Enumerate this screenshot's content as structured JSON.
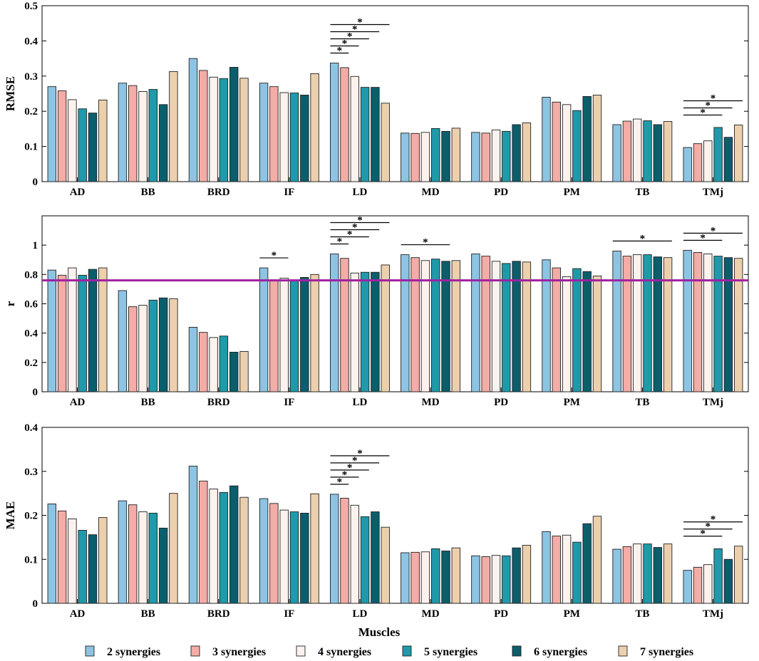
{
  "figure": {
    "xlabel": "Muscles",
    "colors": [
      "#8dc4e3",
      "#f4aca6",
      "#fbf2ee",
      "#1f9aaa",
      "#0b5e6c",
      "#ecd0ae"
    ],
    "legend": [
      "2 synergies",
      "3 synergies",
      "4 synergies",
      "5 synergies",
      "6 synergies",
      "7 synergies"
    ]
  },
  "chart_data": [
    {
      "type": "bar",
      "ylabel": "RMSE",
      "ylim": [
        0,
        0.5
      ],
      "yticks": [
        0,
        0.1,
        0.2,
        0.3,
        0.4,
        0.5
      ],
      "ytick_labels": [
        "0",
        "0.1",
        "0.2",
        "0.3",
        "0.4",
        "0.5"
      ],
      "categories": [
        "AD",
        "BB",
        "BRD",
        "IF",
        "LD",
        "MD",
        "PD",
        "PM",
        "TB",
        "TMj"
      ],
      "series": [
        {
          "name": "2 synergies",
          "values": [
            0.27,
            0.28,
            0.35,
            0.28,
            0.337,
            0.138,
            0.14,
            0.24,
            0.162,
            0.097
          ]
        },
        {
          "name": "3 synergies",
          "values": [
            0.258,
            0.273,
            0.316,
            0.27,
            0.324,
            0.137,
            0.138,
            0.226,
            0.172,
            0.108
          ]
        },
        {
          "name": "4 synergies",
          "values": [
            0.233,
            0.256,
            0.297,
            0.253,
            0.299,
            0.14,
            0.147,
            0.219,
            0.178,
            0.116
          ]
        },
        {
          "name": "5 synergies",
          "values": [
            0.207,
            0.262,
            0.293,
            0.252,
            0.268,
            0.151,
            0.143,
            0.202,
            0.173,
            0.154
          ]
        },
        {
          "name": "6 synergies",
          "values": [
            0.195,
            0.219,
            0.325,
            0.246,
            0.268,
            0.143,
            0.162,
            0.242,
            0.162,
            0.126
          ]
        },
        {
          "name": "7 synergies",
          "values": [
            0.232,
            0.313,
            0.294,
            0.307,
            0.223,
            0.152,
            0.167,
            0.246,
            0.171,
            0.161
          ]
        }
      ],
      "significance": [
        {
          "group": 4,
          "from": 0,
          "to": 1,
          "label": "*"
        },
        {
          "group": 4,
          "from": 0,
          "to": 2,
          "label": "*"
        },
        {
          "group": 4,
          "from": 0,
          "to": 3,
          "label": "*"
        },
        {
          "group": 4,
          "from": 0,
          "to": 4,
          "label": "*"
        },
        {
          "group": 4,
          "from": 0,
          "to": 5,
          "label": "*"
        },
        {
          "group": 9,
          "from": 0,
          "to": 3,
          "label": "*"
        },
        {
          "group": 9,
          "from": 0,
          "to": 4,
          "label": "*"
        },
        {
          "group": 9,
          "from": 0,
          "to": 5,
          "label": "*"
        }
      ]
    },
    {
      "type": "bar",
      "ylabel": "r",
      "ylim": [
        0,
        1.2
      ],
      "yticks": [
        0,
        0.2,
        0.4,
        0.6,
        0.8,
        1
      ],
      "ytick_labels": [
        "0",
        "0.2",
        "0.4",
        "0.6",
        "0.8",
        "1"
      ],
      "reference_line": {
        "value": 0.76,
        "color": "#a020a0"
      },
      "categories": [
        "AD",
        "BB",
        "BRD",
        "IF",
        "LD",
        "MD",
        "PD",
        "PM",
        "TB",
        "TMj"
      ],
      "series": [
        {
          "name": "2 synergies",
          "values": [
            0.83,
            0.69,
            0.44,
            0.845,
            0.94,
            0.935,
            0.94,
            0.9,
            0.96,
            0.965
          ]
        },
        {
          "name": "3 synergies",
          "values": [
            0.795,
            0.58,
            0.405,
            0.76,
            0.91,
            0.915,
            0.925,
            0.845,
            0.925,
            0.95
          ]
        },
        {
          "name": "4 synergies",
          "values": [
            0.845,
            0.59,
            0.37,
            0.775,
            0.81,
            0.895,
            0.89,
            0.785,
            0.935,
            0.94
          ]
        },
        {
          "name": "5 synergies",
          "values": [
            0.795,
            0.625,
            0.38,
            0.76,
            0.815,
            0.905,
            0.875,
            0.84,
            0.935,
            0.925
          ]
        },
        {
          "name": "6 synergies",
          "values": [
            0.835,
            0.64,
            0.27,
            0.78,
            0.815,
            0.89,
            0.89,
            0.82,
            0.92,
            0.915
          ]
        },
        {
          "name": "7 synergies",
          "values": [
            0.845,
            0.635,
            0.275,
            0.8,
            0.865,
            0.895,
            0.885,
            0.79,
            0.915,
            0.91
          ]
        }
      ],
      "significance": [
        {
          "group": 3,
          "from": 0,
          "to": 2,
          "label": "*"
        },
        {
          "group": 4,
          "from": 0,
          "to": 1,
          "label": "*"
        },
        {
          "group": 4,
          "from": 0,
          "to": 3,
          "label": "*"
        },
        {
          "group": 4,
          "from": 0,
          "to": 4,
          "label": "*"
        },
        {
          "group": 4,
          "from": 0,
          "to": 5,
          "label": "*"
        },
        {
          "group": 5,
          "from": 0,
          "to": 4,
          "label": "*"
        },
        {
          "group": 8,
          "from": 0,
          "to": 5,
          "label": "*"
        },
        {
          "group": 9,
          "from": 0,
          "to": 3,
          "label": "*"
        },
        {
          "group": 9,
          "from": 0,
          "to": 5,
          "label": "*"
        }
      ]
    },
    {
      "type": "bar",
      "ylabel": "MAE",
      "ylim": [
        0,
        0.4
      ],
      "yticks": [
        0,
        0.1,
        0.2,
        0.3,
        0.4
      ],
      "ytick_labels": [
        "0",
        "0.1",
        "0.2",
        "0.3",
        "0.4"
      ],
      "categories": [
        "AD",
        "BB",
        "BRD",
        "IF",
        "LD",
        "MD",
        "PD",
        "PM",
        "TB",
        "TMj"
      ],
      "series": [
        {
          "name": "2 synergies",
          "values": [
            0.226,
            0.233,
            0.312,
            0.238,
            0.248,
            0.115,
            0.108,
            0.163,
            0.123,
            0.075
          ]
        },
        {
          "name": "3 synergies",
          "values": [
            0.21,
            0.224,
            0.278,
            0.227,
            0.239,
            0.116,
            0.106,
            0.153,
            0.129,
            0.082
          ]
        },
        {
          "name": "4 synergies",
          "values": [
            0.192,
            0.208,
            0.26,
            0.212,
            0.223,
            0.117,
            0.109,
            0.155,
            0.135,
            0.088
          ]
        },
        {
          "name": "5 synergies",
          "values": [
            0.166,
            0.205,
            0.252,
            0.208,
            0.197,
            0.124,
            0.108,
            0.139,
            0.135,
            0.124
          ]
        },
        {
          "name": "6 synergies",
          "values": [
            0.156,
            0.171,
            0.267,
            0.205,
            0.208,
            0.119,
            0.126,
            0.181,
            0.127,
            0.1
          ]
        },
        {
          "name": "7 synergies",
          "values": [
            0.195,
            0.25,
            0.241,
            0.249,
            0.173,
            0.126,
            0.132,
            0.198,
            0.135,
            0.13
          ]
        }
      ],
      "significance": [
        {
          "group": 4,
          "from": 0,
          "to": 1,
          "label": "*"
        },
        {
          "group": 4,
          "from": 0,
          "to": 2,
          "label": "*"
        },
        {
          "group": 4,
          "from": 0,
          "to": 3,
          "label": "*"
        },
        {
          "group": 4,
          "from": 0,
          "to": 4,
          "label": "*"
        },
        {
          "group": 4,
          "from": 0,
          "to": 5,
          "label": "*"
        },
        {
          "group": 9,
          "from": 0,
          "to": 3,
          "label": "*"
        },
        {
          "group": 9,
          "from": 0,
          "to": 4,
          "label": "*"
        },
        {
          "group": 9,
          "from": 0,
          "to": 5,
          "label": "*"
        }
      ]
    }
  ]
}
